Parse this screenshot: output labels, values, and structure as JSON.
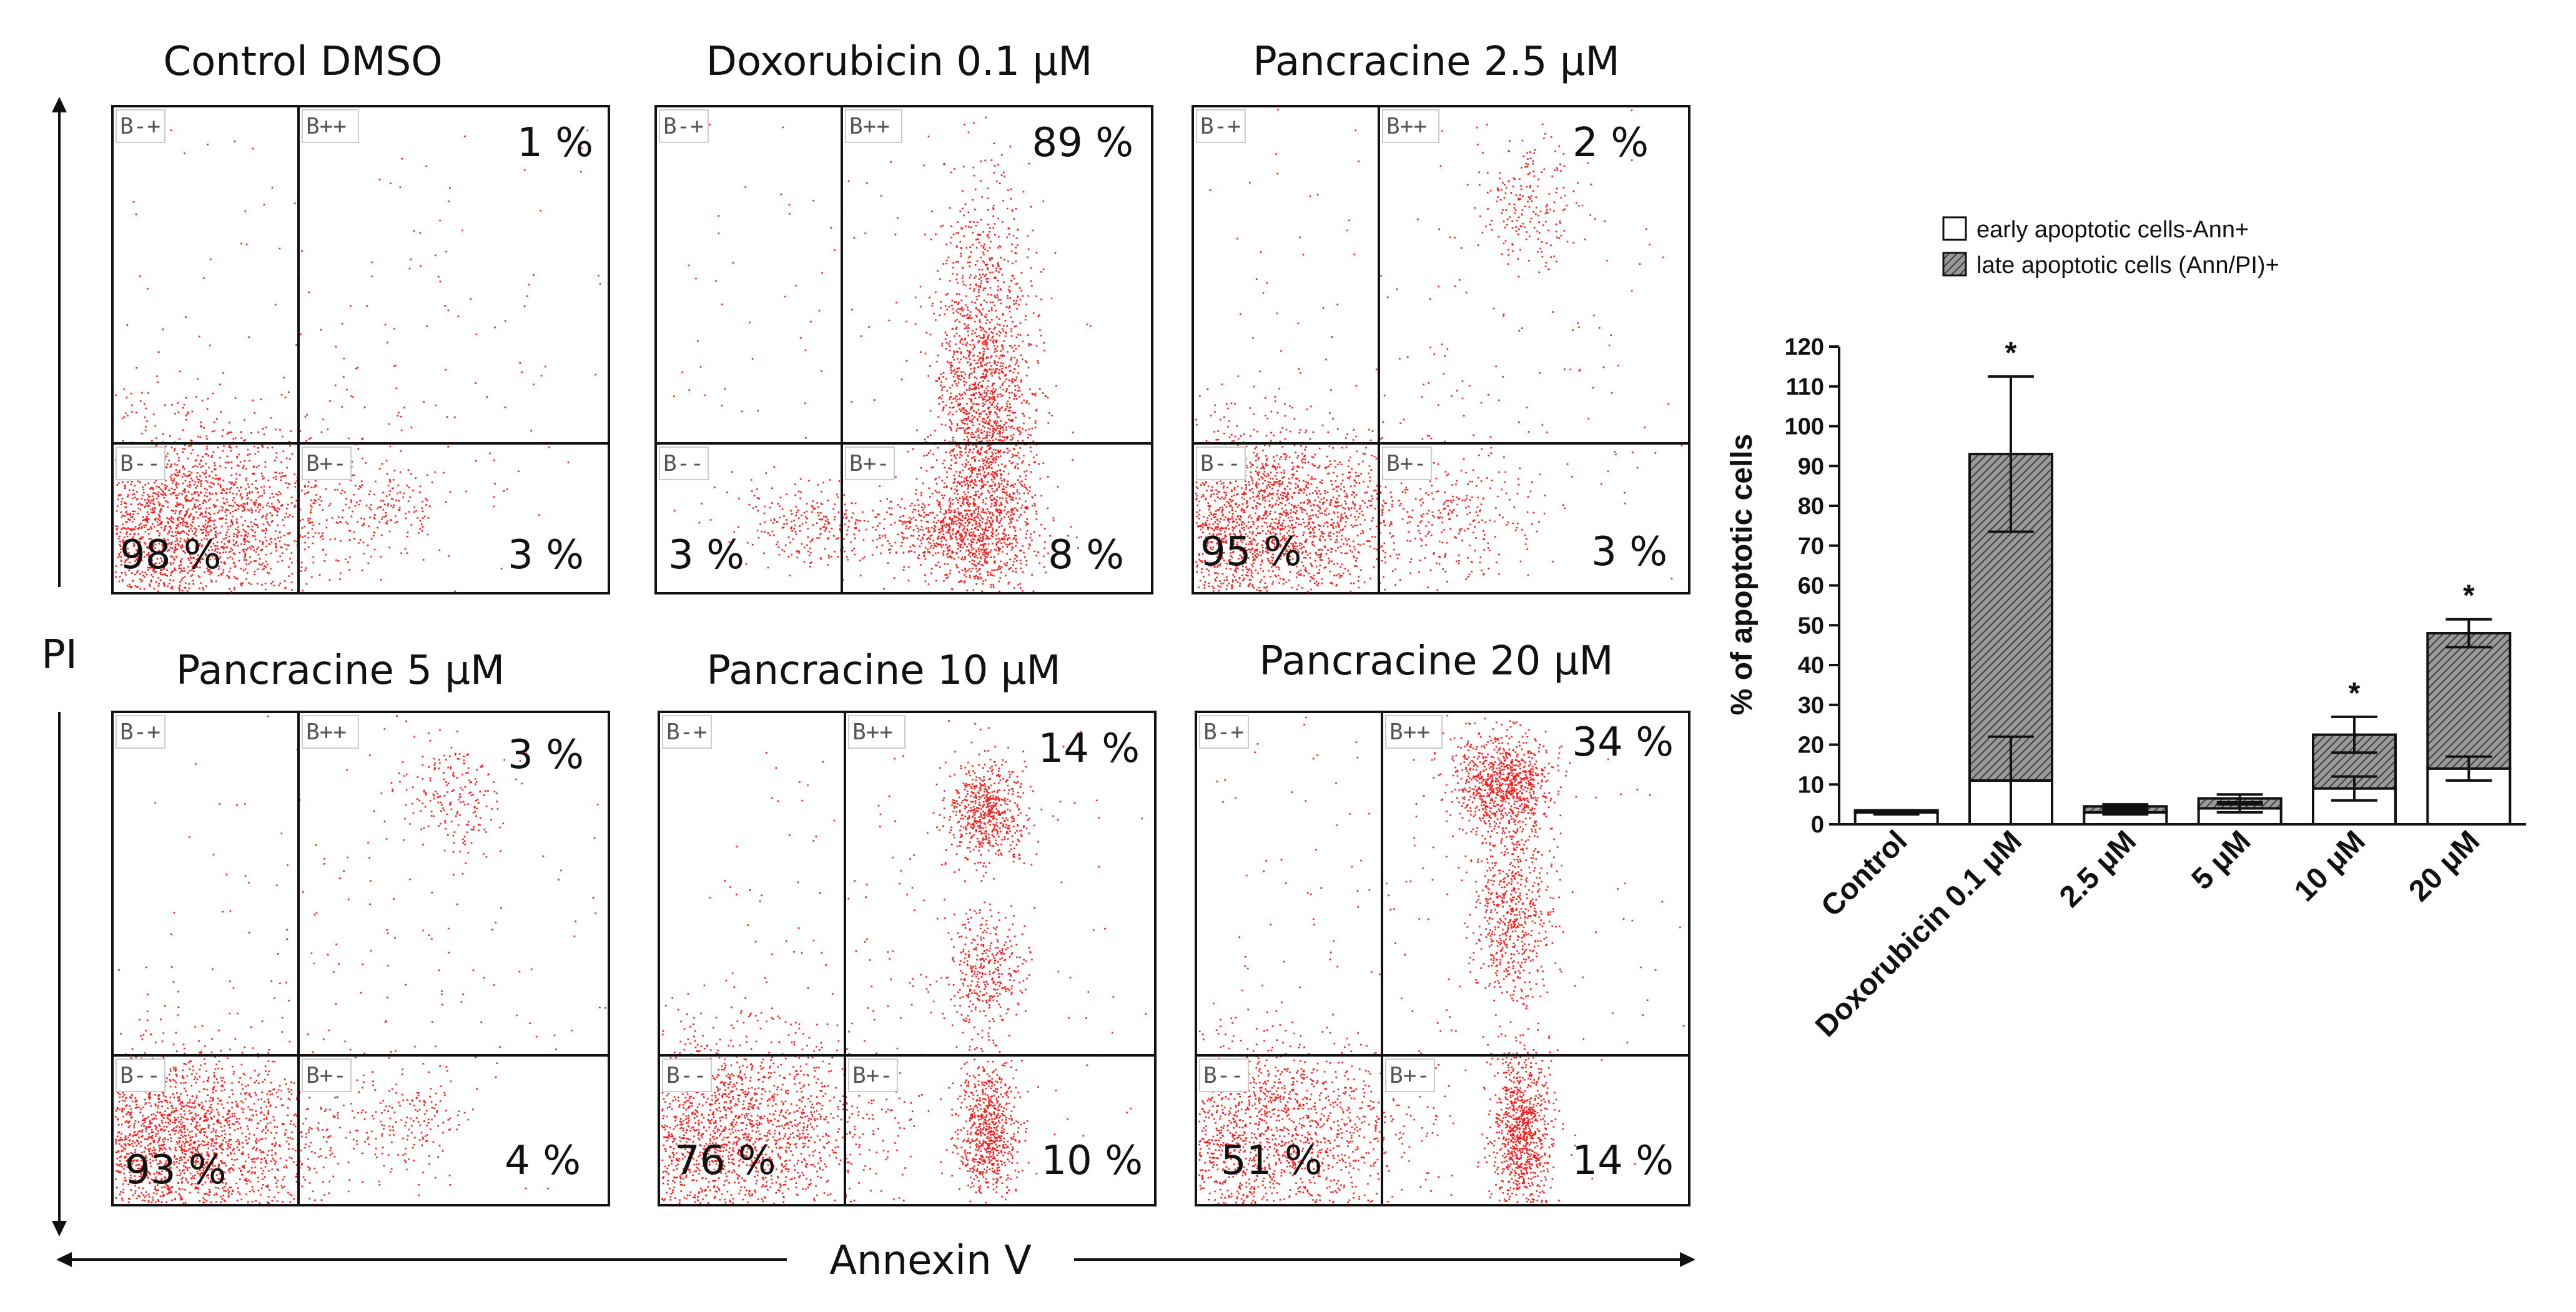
{
  "flow": {
    "axis_y": "PI",
    "axis_x": "Annexin V",
    "panels": [
      {
        "title": "Control DMSO",
        "gates": [
          "B-+",
          "B++",
          "B--",
          "B+-"
        ],
        "q_ul": "",
        "q_ur": "1 %",
        "q_ll": "98 %",
        "q_lr": "3 %"
      },
      {
        "title": "Doxorubicin 0.1 μM",
        "gates": [
          "B-+",
          "B++",
          "B--",
          "B+-"
        ],
        "q_ul": "",
        "q_ur": "89 %",
        "q_ll": "3 %",
        "q_lr": "8 %"
      },
      {
        "title": "Pancracine 2.5 μM",
        "gates": [
          "B-+",
          "B++",
          "B--",
          "B+-"
        ],
        "q_ul": "",
        "q_ur": "2 %",
        "q_ll": "95 %",
        "q_lr": "3 %"
      },
      {
        "title": "Pancracine 5 μM",
        "gates": [
          "B-+",
          "B++",
          "B--",
          "B+-"
        ],
        "q_ul": "",
        "q_ur": "3 %",
        "q_ll": "93 %",
        "q_lr": "4 %"
      },
      {
        "title": "Pancracine 10 μM",
        "gates": [
          "B-+",
          "B++",
          "B--",
          "B+-"
        ],
        "q_ul": "",
        "q_ur": "14 %",
        "q_ll": "76 %",
        "q_lr": "10 %"
      },
      {
        "title": "Pancracine 20 μM",
        "gates": [
          "B-+",
          "B++",
          "B--",
          "B+-"
        ],
        "q_ul": "",
        "q_ur": "34 %",
        "q_ll": "51 %",
        "q_lr": "14 %"
      }
    ]
  },
  "chart_data": {
    "type": "bar",
    "stacked": true,
    "title": "",
    "xlabel": "",
    "ylabel": "% of apoptotic cells",
    "ylim": [
      0,
      120
    ],
    "yticks": [
      "0",
      "10",
      "20",
      "30",
      "40",
      "50",
      "60",
      "70",
      "80",
      "90",
      "100",
      "110",
      "120"
    ],
    "categories": [
      "Control",
      "Doxorubicin 0.1 μM",
      "2.5 μM",
      "5 μM",
      "10 μM",
      "20 μM"
    ],
    "series": [
      {
        "name": "early apoptotic cells-Ann+",
        "pattern": "none",
        "values": [
          3,
          11,
          3,
          4,
          9,
          14
        ],
        "error": [
          0.5,
          11,
          0.5,
          1,
          3,
          3
        ]
      },
      {
        "name": "late apoptotic cells (Ann/PI)+",
        "pattern": "hatched",
        "values": [
          0.5,
          82,
          1.5,
          2.5,
          13.5,
          34
        ],
        "error": [
          0,
          19.5,
          0.5,
          1,
          4.5,
          3.5
        ]
      }
    ],
    "significance": [
      "",
      "*",
      "",
      "",
      "*",
      "*"
    ],
    "legend_position": "top"
  },
  "colors": {
    "dots": "#ff1a1a",
    "bar_fill": "#ffffff",
    "hatch": "#555555",
    "axis": "#111111"
  }
}
